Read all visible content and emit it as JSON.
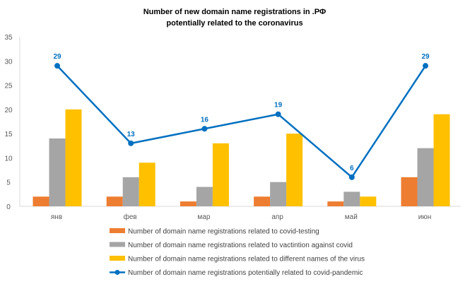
{
  "chart_data": {
    "type": "bar",
    "title": [
      "Number of new domain name registrations in .РФ",
      "potentially related to the coronavirus"
    ],
    "categories": [
      "янв",
      "фев",
      "мар",
      "апр",
      "май",
      "июн"
    ],
    "ylim": [
      0,
      35
    ],
    "yticks": [
      0,
      5,
      10,
      15,
      20,
      25,
      30,
      35
    ],
    "grid": false,
    "legend_position": "bottom",
    "series": [
      {
        "name": "Number of domain name registrations related to covid-testing",
        "type": "bar",
        "color": "#ed7d31",
        "values": [
          2,
          2,
          1,
          2,
          1,
          6
        ]
      },
      {
        "name": "Number of domain name registrations related to vactintion against covid",
        "type": "bar",
        "color": "#a5a5a5",
        "values": [
          14,
          6,
          4,
          5,
          3,
          12
        ]
      },
      {
        "name": "Number of domain name registrations related to different names of the virus",
        "type": "bar",
        "color": "#ffc000",
        "values": [
          20,
          9,
          13,
          15,
          2,
          19
        ]
      },
      {
        "name": "Number of domain name registrations potentially related to covid-pandemic",
        "type": "line",
        "color": "#0070c0",
        "values": [
          29,
          13,
          16,
          19,
          6,
          29
        ],
        "data_labels": true
      }
    ]
  }
}
